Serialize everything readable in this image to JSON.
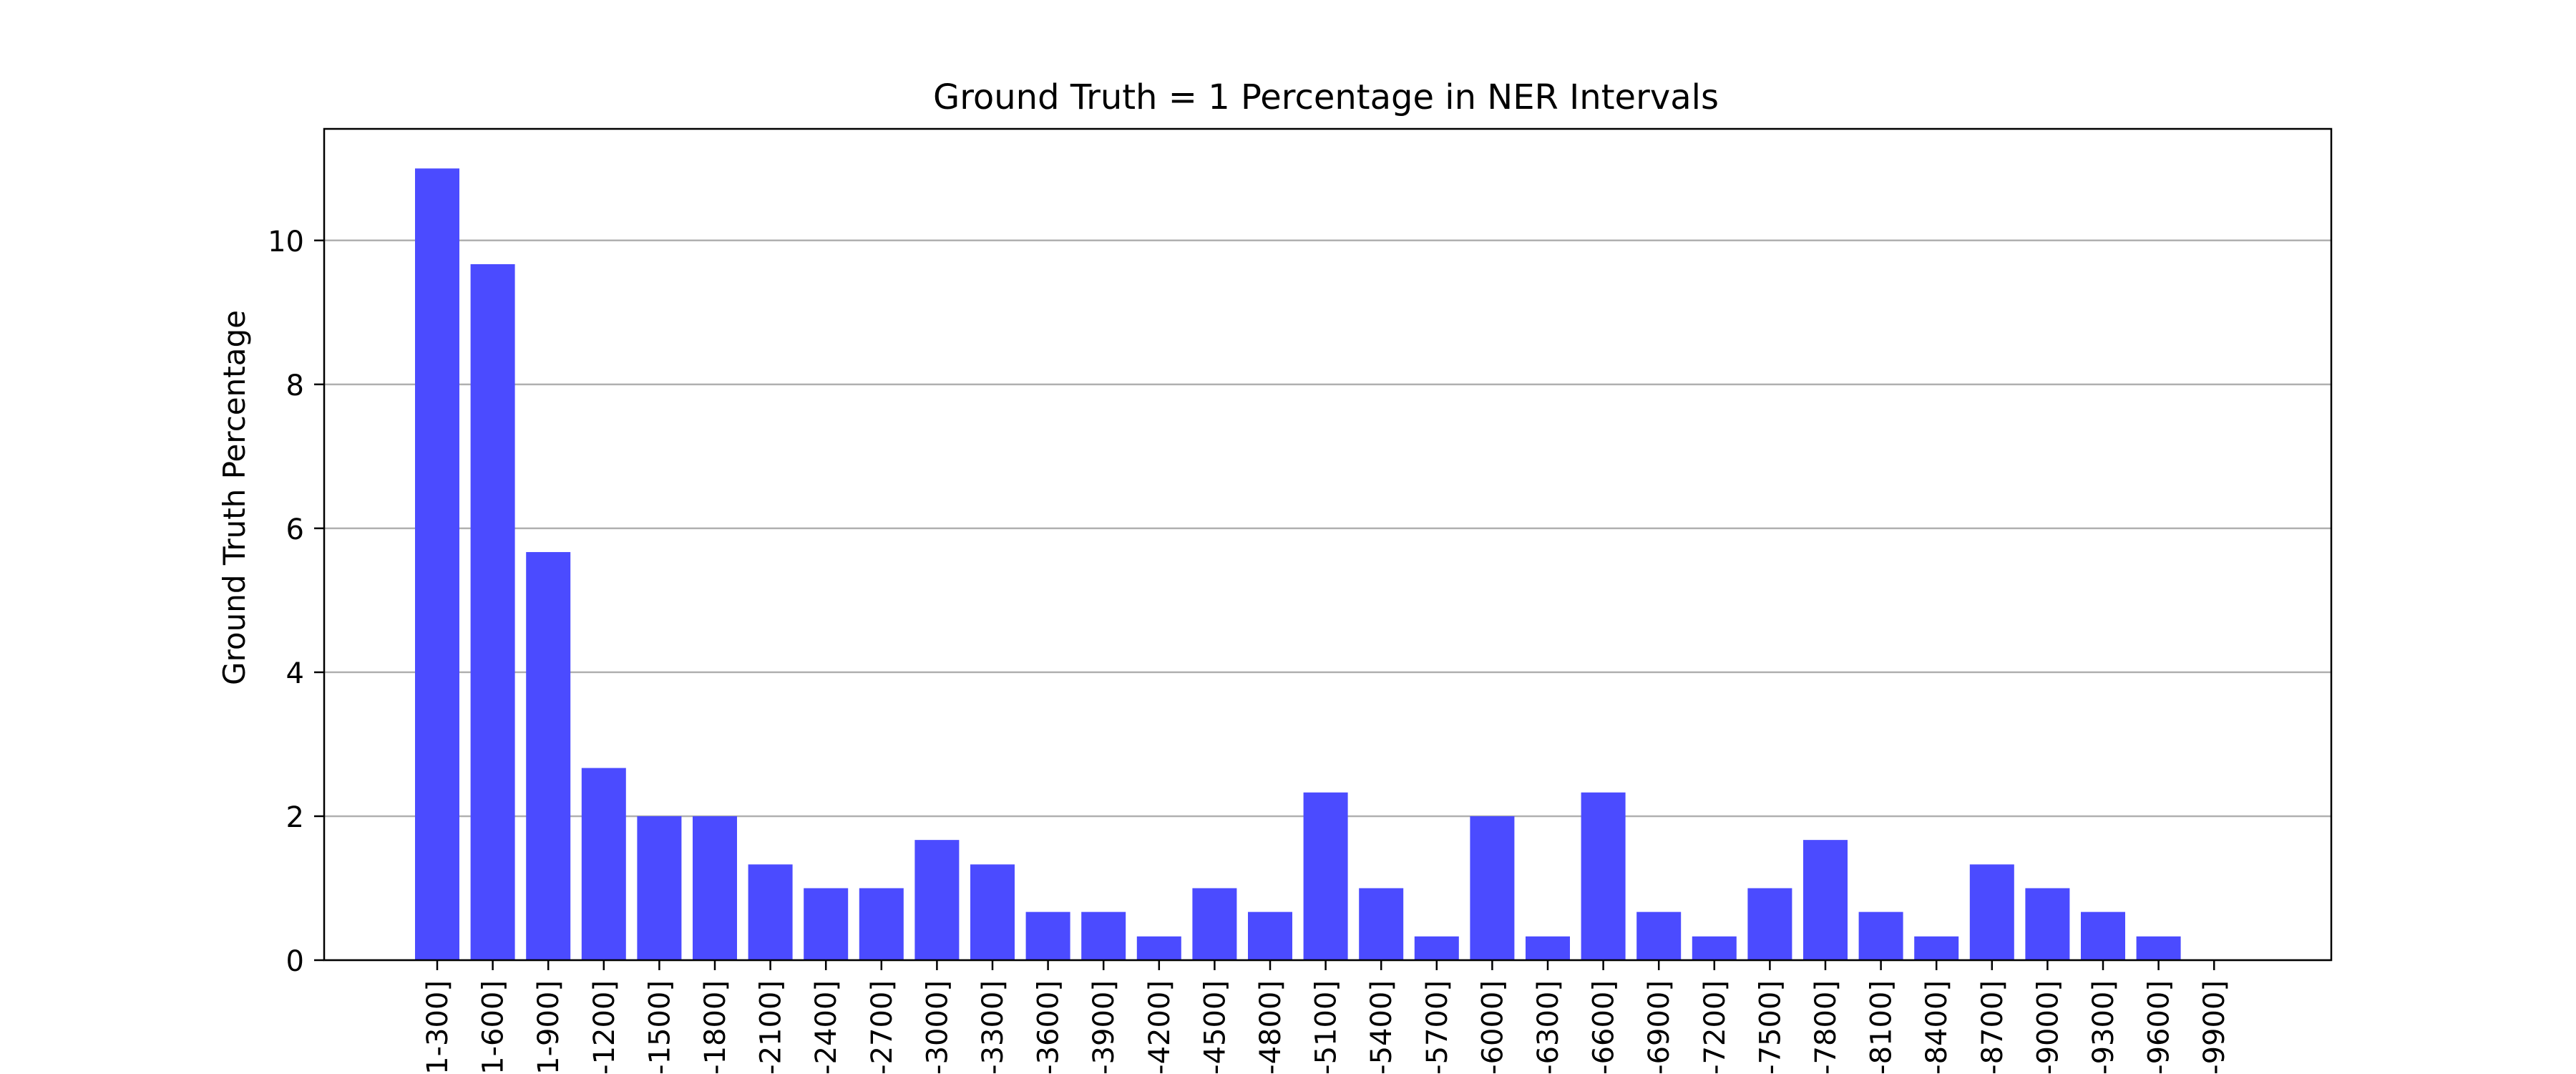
{
  "chart_data": {
    "type": "bar",
    "title": "Ground Truth = 1 Percentage in NER Intervals",
    "xlabel": "",
    "ylabel": "Ground Truth Percentage",
    "ylim": [
      0,
      11.55
    ],
    "yticks": [
      "0",
      "2",
      "4",
      "6",
      "8",
      "10"
    ],
    "grid": "horizontal",
    "bar_color": "#4b4bff",
    "categories": [
      "1-300]",
      "1-600]",
      "1-900]",
      "-1200]",
      "-1500]",
      "-1800]",
      "-2100]",
      "-2400]",
      "-2700]",
      "-3000]",
      "-3300]",
      "-3600]",
      "-3900]",
      "-4200]",
      "-4500]",
      "-4800]",
      "-5100]",
      "-5400]",
      "-5700]",
      "-6000]",
      "-6300]",
      "-6600]",
      "-6900]",
      "-7200]",
      "-7500]",
      "-7800]",
      "-8100]",
      "-8400]",
      "-8700]",
      "-9000]",
      "-9300]",
      "-9600]",
      "-9900]"
    ],
    "values": [
      11.0,
      9.67,
      5.67,
      2.67,
      2.0,
      2.0,
      1.33,
      1.0,
      1.0,
      1.67,
      1.33,
      0.67,
      0.67,
      0.33,
      1.0,
      0.67,
      2.33,
      1.0,
      0.33,
      2.0,
      0.33,
      2.33,
      0.67,
      0.33,
      1.0,
      1.67,
      0.67,
      0.33,
      1.33,
      1.0,
      0.67,
      0.33,
      0.0
    ]
  }
}
